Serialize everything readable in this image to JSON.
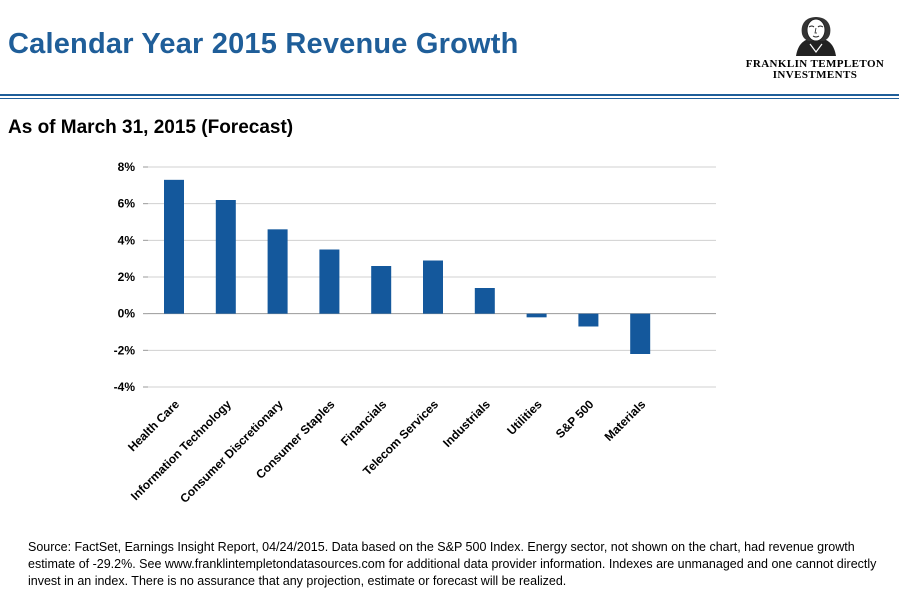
{
  "header": {
    "title": "Calendar Year 2015 Revenue Growth",
    "subtitle": "As of March 31, 2015 (Forecast)"
  },
  "logo": {
    "line1": "FRANKLIN TEMPLETON",
    "line2": "INVESTMENTS",
    "icon": "benjamin-franklin-portrait-icon"
  },
  "footer": {
    "source": "Source: FactSet, Earnings Insight Report, 04/24/2015. Data based on the S&P 500 Index. Energy sector, not shown on the chart, had revenue growth estimate of -29.2%. See www.franklintempletondatasources.com for additional data provider information. Indexes are unmanaged and one cannot directly invest in an index. There is no assurance that any projection, estimate or forecast will be realized."
  },
  "colors": {
    "brand": "#1f5e99",
    "bar": "#14589c",
    "gridline": "#d0d0d0"
  },
  "chart_data": {
    "type": "bar",
    "categories": [
      "Health Care",
      "Information Technology",
      "Consumer Discretionary",
      "Consumer Staples",
      "Financials",
      "Telecom Services",
      "Industrials",
      "Utilities",
      "S&P 500",
      "Materials"
    ],
    "values": [
      7.3,
      6.2,
      4.6,
      3.5,
      2.6,
      2.9,
      1.4,
      -0.2,
      -0.7,
      -2.2
    ],
    "ylim": [
      -4,
      8
    ],
    "yticks": [
      8,
      6,
      4,
      2,
      0,
      -2,
      -4
    ],
    "yticklabels": [
      "8%",
      "6%",
      "4%",
      "2%",
      "0%",
      "-2%",
      "-4%"
    ],
    "grid": true,
    "legend": "none"
  }
}
